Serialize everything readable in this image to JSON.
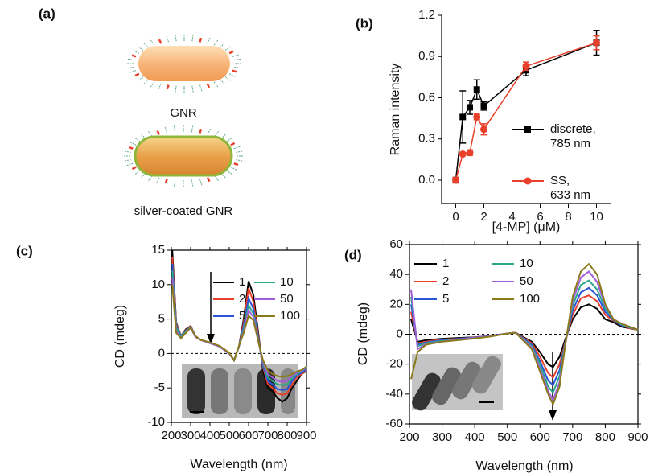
{
  "diagram": {
    "label": "(a)",
    "items": [
      "GNR",
      "silver-coated GNR"
    ]
  },
  "chart_data": [
    {
      "type": "line",
      "label": "(b)",
      "xlabel": "[4-MP] (μM)",
      "ylabel": "Raman intensity",
      "x": [
        0,
        0.5,
        1,
        1.5,
        2,
        5,
        10
      ],
      "xlim": [
        -1,
        11
      ],
      "xticks": [
        0,
        2,
        4,
        6,
        8,
        10
      ],
      "ylim": [
        -0.17,
        1.2
      ],
      "yticks": [
        {
          "value": 0,
          "label": "0.0"
        },
        0.3,
        0.6,
        0.9,
        1.2
      ],
      "box": false,
      "series": [
        {
          "name": "discrete,\n785 nm",
          "color": "#000000",
          "marker": "square",
          "values": [
            0.0,
            0.46,
            0.53,
            0.66,
            0.54,
            0.8,
            1.0
          ],
          "errors": [
            0.02,
            0.19,
            0.05,
            0.07,
            0.03,
            0.04,
            0.09
          ]
        },
        {
          "name": "SS,\n633 nm",
          "color": "#e8402a",
          "marker": "circle",
          "values": [
            0.0,
            0.19,
            0.2,
            0.46,
            0.37,
            0.83,
            1.0
          ],
          "errors": [
            0.02,
            0.01,
            0.02,
            0.02,
            0.04,
            0.03,
            0.05
          ]
        }
      ]
    },
    {
      "type": "line",
      "label": "(c)",
      "xlabel": "Wavelength (nm)",
      "ylabel": "CD (mdeg)",
      "x": [
        205,
        225,
        250,
        275,
        300,
        325,
        350,
        400,
        450,
        500,
        525,
        550,
        575,
        600,
        625,
        650,
        675,
        700,
        725,
        750,
        775,
        800,
        825,
        850,
        875,
        900
      ],
      "xlim": [
        200,
        900
      ],
      "xticks": [
        200,
        300,
        400,
        500,
        600,
        700,
        800,
        900
      ],
      "ylim": [
        -10,
        15
      ],
      "yticks": [
        -10,
        -5,
        0,
        5,
        10,
        15
      ],
      "box": true,
      "hline": 0,
      "series": [
        {
          "name": "1",
          "color": "#000000",
          "values": [
            15,
            4.5,
            2.5,
            3.5,
            4,
            2.5,
            2,
            1.5,
            1,
            0,
            -1,
            1,
            5,
            10.5,
            8.5,
            3,
            -2.5,
            -5,
            -5.5,
            -6.5,
            -7,
            -6.5,
            -5,
            -4,
            -3,
            -2.5
          ]
        },
        {
          "name": "2",
          "color": "#e8402a",
          "values": [
            14,
            4.3,
            2.5,
            3.4,
            4,
            2.5,
            2,
            1.5,
            1,
            0,
            -1,
            1,
            4.5,
            9.5,
            7.5,
            2.5,
            -2,
            -4.5,
            -5,
            -5.8,
            -6,
            -5.8,
            -4.5,
            -3.5,
            -3,
            -2.3
          ]
        },
        {
          "name": "5",
          "color": "#2a55d8",
          "values": [
            13,
            4,
            2.5,
            3.3,
            3.9,
            2.5,
            2,
            1.5,
            1,
            0,
            -1,
            1,
            4,
            8,
            6.5,
            2.2,
            -1.8,
            -4,
            -4.5,
            -5.2,
            -5.3,
            -5.2,
            -4,
            -3.2,
            -2.8,
            -2.2
          ]
        },
        {
          "name": "10",
          "color": "#2aa88a",
          "values": [
            12,
            3.8,
            2.4,
            3.2,
            3.8,
            2.4,
            2,
            1.5,
            1,
            0,
            -1,
            1,
            3.6,
            7,
            5.8,
            2,
            -1.5,
            -3.5,
            -4,
            -4.5,
            -4.6,
            -4.5,
            -3.6,
            -3,
            -2.6,
            -2
          ]
        },
        {
          "name": "50",
          "color": "#a05fd8",
          "values": [
            11,
            3.3,
            2.2,
            3,
            3.7,
            2.4,
            2,
            1.5,
            1,
            0,
            -1,
            1,
            3.2,
            6.3,
            5.3,
            1.8,
            -1.3,
            -3,
            -3.5,
            -4,
            -4.1,
            -4,
            -3.3,
            -2.8,
            -2.5,
            -2
          ]
        },
        {
          "name": "100",
          "color": "#8a7a1a",
          "values": [
            10,
            3,
            2.2,
            3,
            3.8,
            2.5,
            2,
            1.6,
            1.1,
            0.1,
            -1,
            1.1,
            3,
            5.5,
            4.8,
            1.8,
            -1,
            -2.5,
            -3,
            -3.3,
            -3.4,
            -3.3,
            -3,
            -2.6,
            -2.4,
            -1.9
          ]
        }
      ]
    },
    {
      "type": "line",
      "label": "(d)",
      "xlabel": "Wavelength (nm)",
      "ylabel": "CD (mdeg)",
      "x": [
        205,
        225,
        250,
        300,
        350,
        400,
        450,
        500,
        525,
        550,
        575,
        600,
        625,
        640,
        660,
        675,
        700,
        725,
        750,
        775,
        800,
        825,
        850,
        875,
        900
      ],
      "xlim": [
        200,
        900
      ],
      "xticks": [
        200,
        300,
        400,
        500,
        600,
        700,
        800,
        900
      ],
      "ylim": [
        -60,
        60
      ],
      "yticks": [
        -60,
        -40,
        -20,
        0,
        20,
        40,
        60
      ],
      "box": true,
      "hline": 0,
      "series": [
        {
          "name": "1",
          "color": "#000000",
          "values": [
            10,
            -5,
            -4,
            -3,
            -2.5,
            -2,
            -1,
            0.5,
            1,
            -2,
            -5,
            -12,
            -20,
            -22,
            -15,
            -5,
            10,
            18,
            20,
            17,
            10,
            8,
            5,
            4,
            3
          ]
        },
        {
          "name": "2",
          "color": "#e8402a",
          "values": [
            15,
            -6,
            -5,
            -3.5,
            -3,
            -2,
            -1,
            0.5,
            1,
            -2.5,
            -6,
            -15,
            -26,
            -29,
            -20,
            -7,
            13,
            24,
            26,
            22,
            13,
            9,
            6,
            4,
            3
          ]
        },
        {
          "name": "5",
          "color": "#2a55d8",
          "values": [
            20,
            -7,
            -5.5,
            -4,
            -3,
            -2.2,
            -1,
            0.5,
            1,
            -3,
            -7,
            -18,
            -31,
            -34,
            -24,
            -8,
            16,
            28,
            31,
            26,
            15,
            9.5,
            6,
            4.5,
            3
          ]
        },
        {
          "name": "10",
          "color": "#2aa88a",
          "values": [
            25,
            -8,
            -6,
            -4.5,
            -3.5,
            -2.5,
            -1.2,
            0.5,
            1,
            -3.5,
            -8,
            -20,
            -35,
            -39,
            -28,
            -9,
            19,
            33,
            36,
            30,
            17,
            10,
            6.5,
            4.5,
            3
          ]
        },
        {
          "name": "50",
          "color": "#a05fd8",
          "values": [
            30,
            -10,
            -6.5,
            -5,
            -3.5,
            -2.5,
            -1.2,
            0.5,
            1,
            -4,
            -9,
            -23,
            -38,
            -44,
            -32,
            -10,
            22,
            38,
            42,
            35,
            19,
            10,
            7,
            5,
            3
          ]
        },
        {
          "name": "100",
          "color": "#8a7a1a",
          "values": [
            -30,
            -12,
            -7,
            -5,
            -4,
            -2.8,
            -1.5,
            0.5,
            1,
            -4.5,
            -10,
            -25,
            -40,
            -47,
            -35,
            -11,
            25,
            42,
            47,
            40,
            20,
            10,
            7,
            5,
            3
          ]
        }
      ]
    }
  ]
}
